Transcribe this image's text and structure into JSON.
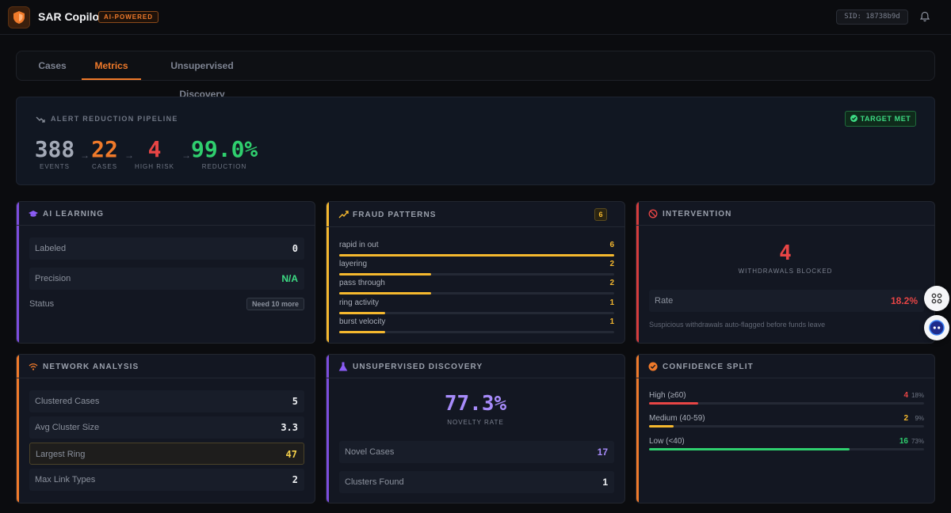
{
  "app": {
    "title": "SAR Copilot",
    "badge": "AI-POWERED",
    "sid": "SID: 18738b9d"
  },
  "tabs": [
    {
      "label": "Cases",
      "active": false
    },
    {
      "label": "Metrics",
      "active": true
    },
    {
      "label": "Unsupervised Discovery",
      "active": false
    }
  ],
  "pipeline": {
    "title": "ALERT REDUCTION PIPELINE",
    "status": "TARGET MET",
    "metrics": [
      {
        "value": "388",
        "label": "EVENTS",
        "color": "#a3a9b6"
      },
      {
        "value": "22",
        "label": "CASES",
        "color": "#f07a2a"
      },
      {
        "value": "4",
        "label": "HIGH RISK",
        "color": "#e84545"
      },
      {
        "value": "99.0%",
        "label": "REDUCTION",
        "color": "#2fcf6e"
      }
    ]
  },
  "ai_learning": {
    "title": "AI LEARNING",
    "labeled_label": "Labeled",
    "labeled_value": "0",
    "precision_label": "Precision",
    "precision_value": "N/A",
    "status_label": "Status",
    "status_value": "Need 10 more"
  },
  "fraud_patterns": {
    "title": "FRAUD PATTERNS",
    "count": "6",
    "items": [
      {
        "label": "rapid in out",
        "value": "6",
        "fraction": 1.0
      },
      {
        "label": "layering",
        "value": "2",
        "fraction": 0.333
      },
      {
        "label": "pass through",
        "value": "2",
        "fraction": 0.333
      },
      {
        "label": "ring activity",
        "value": "1",
        "fraction": 0.167
      },
      {
        "label": "burst velocity",
        "value": "1",
        "fraction": 0.167
      }
    ]
  },
  "intervention": {
    "title": "INTERVENTION",
    "blocked_value": "4",
    "blocked_label": "WITHDRAWALS BLOCKED",
    "rate_label": "Rate",
    "rate_value": "18.2%",
    "note": "Suspicious withdrawals auto-flagged before funds leave"
  },
  "network": {
    "title": "NETWORK ANALYSIS",
    "rows": [
      {
        "label": "Clustered Cases",
        "value": "5"
      },
      {
        "label": "Avg Cluster Size",
        "value": "3.3"
      },
      {
        "label": "Largest Ring",
        "value": "47"
      },
      {
        "label": "Max Link Types",
        "value": "2"
      }
    ]
  },
  "unsupervised": {
    "title": "UNSUPERVISED DISCOVERY",
    "novelty_value": "77.3%",
    "novelty_label": "NOVELTY RATE",
    "novel_cases_label": "Novel Cases",
    "novel_cases_value": "17",
    "clusters_label": "Clusters Found",
    "clusters_value": "1"
  },
  "confidence": {
    "title": "CONFIDENCE SPLIT",
    "items": [
      {
        "label": "High (≥60)",
        "count": "4",
        "pct": "18%",
        "fraction": 0.18,
        "color": "#e84545"
      },
      {
        "label": "Medium (40-59)",
        "count": "2",
        "pct": "9%",
        "fraction": 0.09,
        "color": "#f5b82e"
      },
      {
        "label": "Low (<40)",
        "count": "16",
        "pct": "73%",
        "fraction": 0.73,
        "color": "#2fcf6e"
      }
    ]
  },
  "colors": {
    "accent_orange": "#f07a2a",
    "accent_purple": "#7c4ddc",
    "accent_yellow": "#f5b82e",
    "accent_red": "#d63c3c"
  }
}
